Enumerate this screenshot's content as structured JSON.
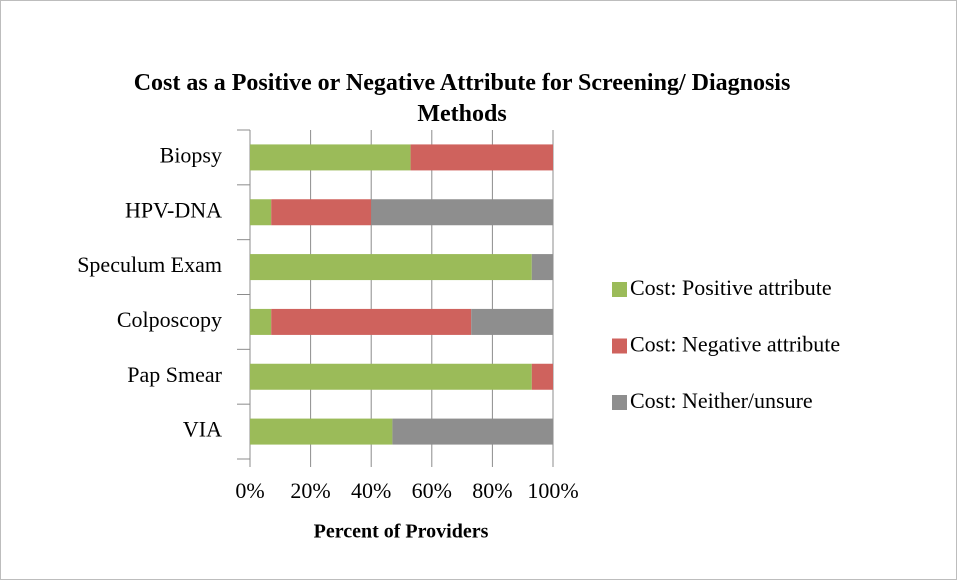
{
  "chart_data": {
    "type": "stacked_bar_horizontal",
    "title": "Cost as a Positive or Negative Attribute for Screening/ Diagnosis Methods",
    "x_label": "Percent of Providers",
    "categories": [
      "Biopsy",
      "HPV-DNA",
      "Speculum Exam",
      "Colposcopy",
      "Pap Smear",
      "VIA"
    ],
    "series": [
      {
        "name": "Cost: Positive attribute",
        "color": "#9bbb59",
        "values": [
          53,
          7,
          93,
          7,
          93,
          47
        ]
      },
      {
        "name": "Cost: Negative attribute",
        "color": "#cf625d",
        "values": [
          47,
          33,
          0,
          66,
          7,
          0
        ]
      },
      {
        "name": "Cost: Neither/unsure",
        "color": "#8e8e8e",
        "values": [
          0,
          60,
          7,
          27,
          0,
          53
        ]
      }
    ],
    "xlim": [
      0,
      100
    ],
    "xticks": [
      {
        "value": 0,
        "label": "0%"
      },
      {
        "value": 20,
        "label": "20%"
      },
      {
        "value": 40,
        "label": "40%"
      },
      {
        "value": 60,
        "label": "60%"
      },
      {
        "value": 80,
        "label": "80%"
      },
      {
        "value": 100,
        "label": "100%"
      }
    ],
    "grid": true,
    "legend": "right"
  }
}
